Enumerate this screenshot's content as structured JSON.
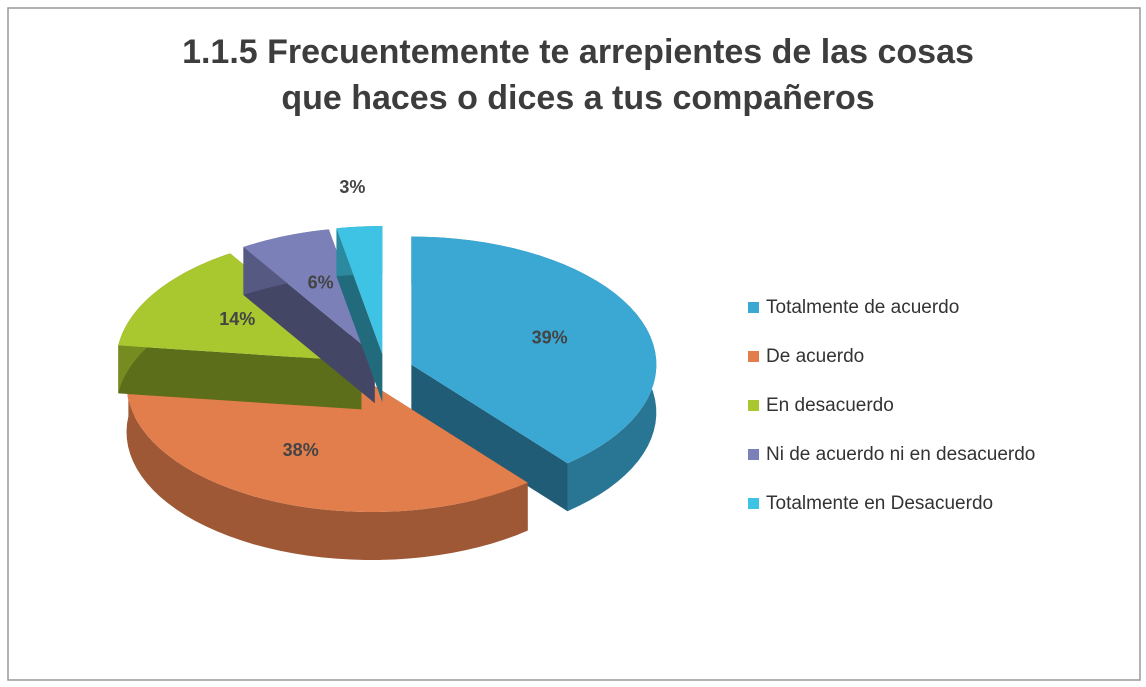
{
  "chart_data": {
    "type": "pie",
    "title": [
      "1.1.5 Frecuentemente te arrepientes de las cosas",
      "que haces o  dices a tus compañeros"
    ],
    "categories": [
      "Totalmente de acuerdo",
      "De acuerdo",
      "En desacuerdo",
      "Ni de acuerdo ni en desacuerdo",
      "Totalmente en Desacuerdo"
    ],
    "values": [
      39,
      38,
      14,
      6,
      3
    ],
    "value_labels": [
      "39%",
      "38%",
      "14%",
      "6%",
      "3%"
    ],
    "colors": [
      "#3ba8d4",
      "#e27d4c",
      "#a9c82f",
      "#7b80b9",
      "#3ec3e4"
    ],
    "legend": "right"
  }
}
